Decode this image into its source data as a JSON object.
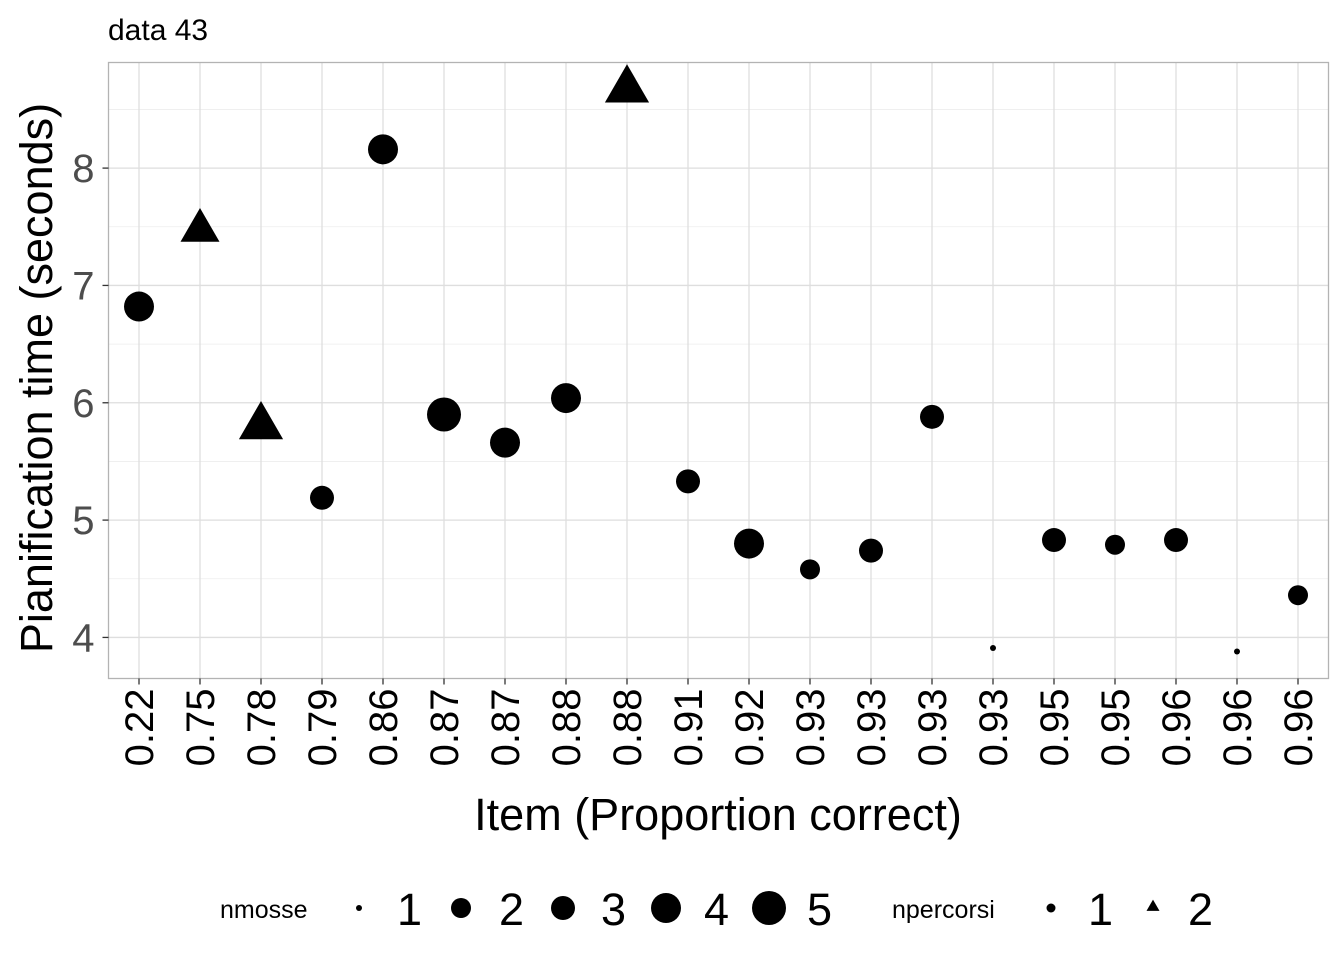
{
  "chart_data": {
    "type": "scatter",
    "title": "data 43",
    "xlabel": "Item (Proportion correct)",
    "ylabel": "Pianification time (seconds)",
    "ylim": [
      3.65,
      8.9
    ],
    "yticks": [
      4,
      5,
      6,
      7,
      8
    ],
    "grid": true,
    "legend_position": "bottom",
    "categories": [
      "0.22",
      "0.75",
      "0.78",
      "0.79",
      "0.86",
      "0.87",
      "0.87",
      "0.88",
      "0.88",
      "0.91",
      "0.92",
      "0.93",
      "0.93",
      "0.93",
      "0.93",
      "0.95",
      "0.95",
      "0.96",
      "0.96",
      "0.96"
    ],
    "highlight_colors": [
      "#0000ff",
      "#000000",
      "#000000",
      "#000000",
      "#000000",
      "#000000",
      "#000000",
      "#000000",
      "#000000",
      "#000000",
      "#000000",
      "#000000",
      "#000000",
      "#000000",
      "#000000",
      "#000000",
      "#000000",
      "#000000",
      "#000000",
      "#000000"
    ],
    "point_color": "#000000",
    "points": [
      {
        "y": 6.82,
        "nmosse": 4,
        "npercorsi": 1
      },
      {
        "y": 7.47,
        "nmosse": 4,
        "npercorsi": 2
      },
      {
        "y": 5.8,
        "nmosse": 5,
        "npercorsi": 2
      },
      {
        "y": 5.19,
        "nmosse": 3,
        "npercorsi": 1
      },
      {
        "y": 8.16,
        "nmosse": 4,
        "npercorsi": 1
      },
      {
        "y": 5.9,
        "nmosse": 5,
        "npercorsi": 1
      },
      {
        "y": 5.66,
        "nmosse": 4,
        "npercorsi": 1
      },
      {
        "y": 6.04,
        "nmosse": 4,
        "npercorsi": 1
      },
      {
        "y": 8.67,
        "nmosse": 5,
        "npercorsi": 2
      },
      {
        "y": 5.33,
        "nmosse": 3,
        "npercorsi": 1
      },
      {
        "y": 4.8,
        "nmosse": 4,
        "npercorsi": 1
      },
      {
        "y": 4.58,
        "nmosse": 2,
        "npercorsi": 1
      },
      {
        "y": 4.74,
        "nmosse": 3,
        "npercorsi": 1
      },
      {
        "y": 5.88,
        "nmosse": 3,
        "npercorsi": 1
      },
      {
        "y": 3.91,
        "nmosse": 1,
        "npercorsi": 1
      },
      {
        "y": 4.83,
        "nmosse": 3,
        "npercorsi": 1
      },
      {
        "y": 4.79,
        "nmosse": 2,
        "npercorsi": 1
      },
      {
        "y": 4.83,
        "nmosse": 3,
        "npercorsi": 1
      },
      {
        "y": 3.88,
        "nmosse": 1,
        "npercorsi": 1
      },
      {
        "y": 4.36,
        "nmosse": 2,
        "npercorsi": 1
      }
    ],
    "legends": [
      {
        "title": "nmosse",
        "shape": "circle",
        "entries": [
          "1",
          "2",
          "3",
          "4",
          "5"
        ]
      },
      {
        "title": "npercorsi",
        "shape": "mixed",
        "entries": [
          "1",
          "2"
        ]
      }
    ]
  }
}
